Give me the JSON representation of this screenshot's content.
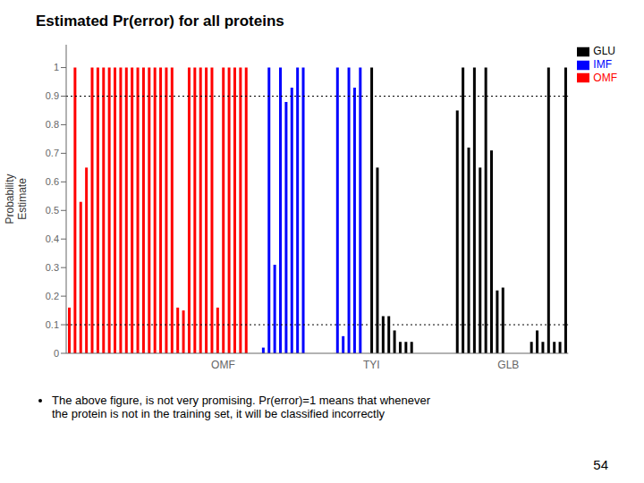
{
  "chart_data": {
    "type": "bar",
    "title": "Estimated Pr(error) for all proteins",
    "subtitle": "The above figure, is not very promising. Pr(error)=1 means that whenever\nthe protein is not in the training set, it will be classified incorrectly",
    "annotations": [
      "54"
    ],
    "y_label": "Probability\nEstimate",
    "categories": [
      null,
      null,
      null,
      null,
      null,
      null,
      null,
      null,
      null,
      null,
      null,
      null,
      null,
      null,
      null,
      null,
      null,
      null,
      null,
      null,
      null,
      null,
      null,
      null,
      null,
      null,
      null,
      "OMF",
      null,
      null,
      null,
      null,
      null,
      null,
      null,
      null,
      null,
      null,
      null,
      null,
      null,
      null,
      null,
      null,
      null,
      null,
      null,
      null,
      null,
      null,
      null,
      null,
      null,
      "TYI",
      null,
      null,
      null,
      null,
      null,
      null,
      null,
      null,
      null,
      null,
      null,
      null,
      null,
      null,
      null,
      null,
      null,
      null,
      null,
      null,
      null,
      null,
      null,
      "GLB",
      null,
      null,
      null,
      null,
      null,
      null,
      null,
      null,
      null,
      null
    ],
    "series": [
      {
        "name": "OMF",
        "color": "red",
        "values": [
          0.16,
          1.0,
          0.53,
          0.65,
          1.0,
          1.0,
          1.0,
          1.0,
          1.0,
          1.0,
          1.0,
          1.0,
          1.0,
          1.0,
          1.0,
          1.0,
          1.0,
          1.0,
          1.0,
          0.16,
          0.15,
          1.0,
          1.0,
          1.0,
          1.0,
          1.0,
          0.16,
          1.0,
          1.0,
          1.0,
          1.0,
          1.0,
          null,
          null,
          null,
          null,
          null,
          null,
          null,
          null,
          null,
          null,
          null,
          null,
          null,
          null,
          null,
          null,
          null,
          null,
          null,
          null,
          null,
          null,
          null,
          null,
          null,
          null,
          null,
          null,
          null,
          null,
          null,
          null,
          null,
          null,
          null,
          null,
          null,
          null,
          null,
          null,
          null,
          null,
          null,
          null,
          null,
          null,
          null,
          null,
          null,
          null,
          null,
          null,
          null,
          null,
          null,
          null
        ]
      },
      {
        "name": "IMF",
        "color": "blue",
        "values": [
          null,
          null,
          null,
          null,
          null,
          null,
          null,
          null,
          null,
          null,
          null,
          null,
          null,
          null,
          null,
          null,
          null,
          null,
          null,
          null,
          null,
          null,
          null,
          null,
          null,
          null,
          null,
          null,
          null,
          null,
          null,
          null,
          null,
          null,
          0.02,
          1.0,
          0.31,
          1.0,
          0.88,
          0.93,
          1.0,
          1.0,
          null,
          null,
          null,
          null,
          null,
          1.0,
          0.06,
          1.0,
          0.93,
          1.0,
          null,
          null,
          null,
          null,
          null,
          null,
          null,
          null,
          null,
          null,
          null,
          null,
          null,
          null,
          null,
          null,
          null,
          null,
          null,
          null,
          null,
          null,
          null,
          null,
          null,
          null,
          null,
          null,
          null,
          null,
          null,
          null,
          null,
          null,
          null,
          null
        ]
      },
      {
        "name": "GLU",
        "color": "black",
        "values": [
          null,
          null,
          null,
          null,
          null,
          null,
          null,
          null,
          null,
          null,
          null,
          null,
          null,
          null,
          null,
          null,
          null,
          null,
          null,
          null,
          null,
          null,
          null,
          null,
          null,
          null,
          null,
          null,
          null,
          null,
          null,
          null,
          null,
          null,
          null,
          null,
          null,
          null,
          null,
          null,
          null,
          null,
          null,
          null,
          null,
          null,
          null,
          null,
          null,
          null,
          null,
          null,
          null,
          1.0,
          0.65,
          0.13,
          0.13,
          0.08,
          0.04,
          0.04,
          0.04,
          null,
          null,
          null,
          null,
          null,
          null,
          null,
          0.85,
          1.0,
          0.72,
          1.0,
          0.65,
          1.0,
          0.71,
          0.22,
          0.23,
          null,
          null,
          null,
          null,
          0.04,
          0.08,
          0.04,
          1.0,
          0.04,
          0.04,
          1.0
        ]
      }
    ],
    "hlines": [
      0.9,
      0.1
    ],
    "ylim": [
      0,
      1.08
    ],
    "yticks": [
      0,
      0.1,
      0.2,
      0.3,
      0.4,
      0.5,
      0.6,
      0.7,
      0.8,
      0.9,
      1
    ],
    "grid": false,
    "legend": "upper right"
  }
}
